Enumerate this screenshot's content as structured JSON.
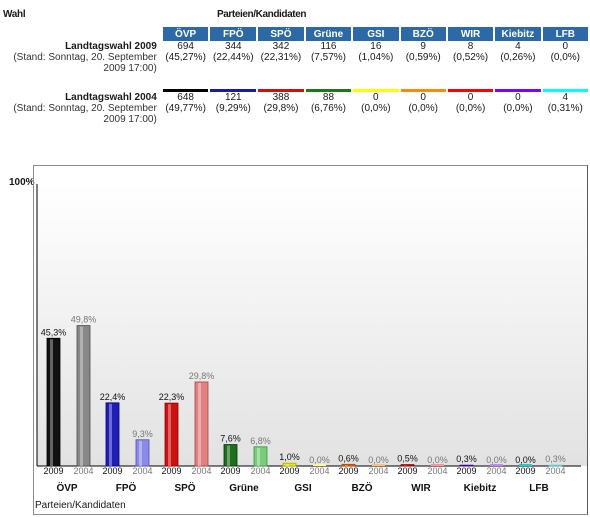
{
  "header": {
    "wahl": "Wahl",
    "parteien": "Parteien/Kandidaten"
  },
  "parties": [
    {
      "name": "ÖVP",
      "color": "#000000"
    },
    {
      "name": "FPÖ",
      "color": "#1a1ab0"
    },
    {
      "name": "SPÖ",
      "color": "#cc1111"
    },
    {
      "name": "Grüne",
      "color": "#1a7a1a"
    },
    {
      "name": "GSI",
      "color": "#ffff00"
    },
    {
      "name": "BZÖ",
      "color": "#ff8c00"
    },
    {
      "name": "WIR",
      "color": "#ff0000"
    },
    {
      "name": "Kiebitz",
      "color": "#8000ff"
    },
    {
      "name": "LFB",
      "color": "#00ffff"
    }
  ],
  "elections": [
    {
      "title": "Landtagswahl 2009",
      "stand": "(Stand: Sonntag, 20. September 2009 17:00)",
      "votes": [
        "694",
        "344",
        "342",
        "116",
        "16",
        "9",
        "8",
        "4",
        "0"
      ],
      "pcts": [
        "(45,27%)",
        "(22,44%)",
        "(22,31%)",
        "(7,57%)",
        "(1,04%)",
        "(0,59%)",
        "(0,52%)",
        "(0,26%)",
        "(0,0%)"
      ]
    },
    {
      "title": "Landtagswahl 2004",
      "stand": "(Stand: Sonntag, 20. September 2009 17:00)",
      "votes": [
        "648",
        "121",
        "388",
        "88",
        "0",
        "0",
        "0",
        "0",
        "4"
      ],
      "pcts": [
        "(49,77%)",
        "(9,29%)",
        "(29,8%)",
        "(6,76%)",
        "(0,0%)",
        "(0,0%)",
        "(0,0%)",
        "(0,0%)",
        "(0,31%)"
      ]
    }
  ],
  "chart_data": {
    "type": "bar",
    "categories": [
      "ÖVP",
      "FPÖ",
      "SPÖ",
      "Grüne",
      "GSI",
      "BZÖ",
      "WIR",
      "Kiebitz",
      "LFB"
    ],
    "series": [
      {
        "name": "2009",
        "values": [
          45.3,
          22.4,
          22.3,
          7.6,
          1.0,
          0.6,
          0.5,
          0.3,
          0.0
        ],
        "labels": [
          "45,3%",
          "22,4%",
          "22,3%",
          "7,6%",
          "1,0%",
          "0,6%",
          "0,5%",
          "0,3%",
          "0,0%"
        ]
      },
      {
        "name": "2004",
        "values": [
          49.8,
          9.3,
          29.8,
          6.8,
          0.0,
          0.0,
          0.0,
          0.0,
          0.3
        ],
        "labels": [
          "49,8%",
          "9,3%",
          "29,8%",
          "6,8%",
          "0,0%",
          "0,0%",
          "0,0%",
          "0,0%",
          "0,3%"
        ]
      }
    ],
    "colors_2009": [
      "#111111",
      "#1f1fb8",
      "#cc1111",
      "#1f6e1f",
      "#e6e600",
      "#e87800",
      "#cc0000",
      "#7a1ad6",
      "#22cccc"
    ],
    "colors_2004": [
      "#888888",
      "#8a8ae8",
      "#e08080",
      "#7acc7a",
      "#ffff99",
      "#ffc27a",
      "#ff9999",
      "#c08aff",
      "#99ffff"
    ],
    "ylim": [
      0,
      100
    ],
    "ytick_label": "100%",
    "xlabel": "Parteien/Kandidaten"
  }
}
